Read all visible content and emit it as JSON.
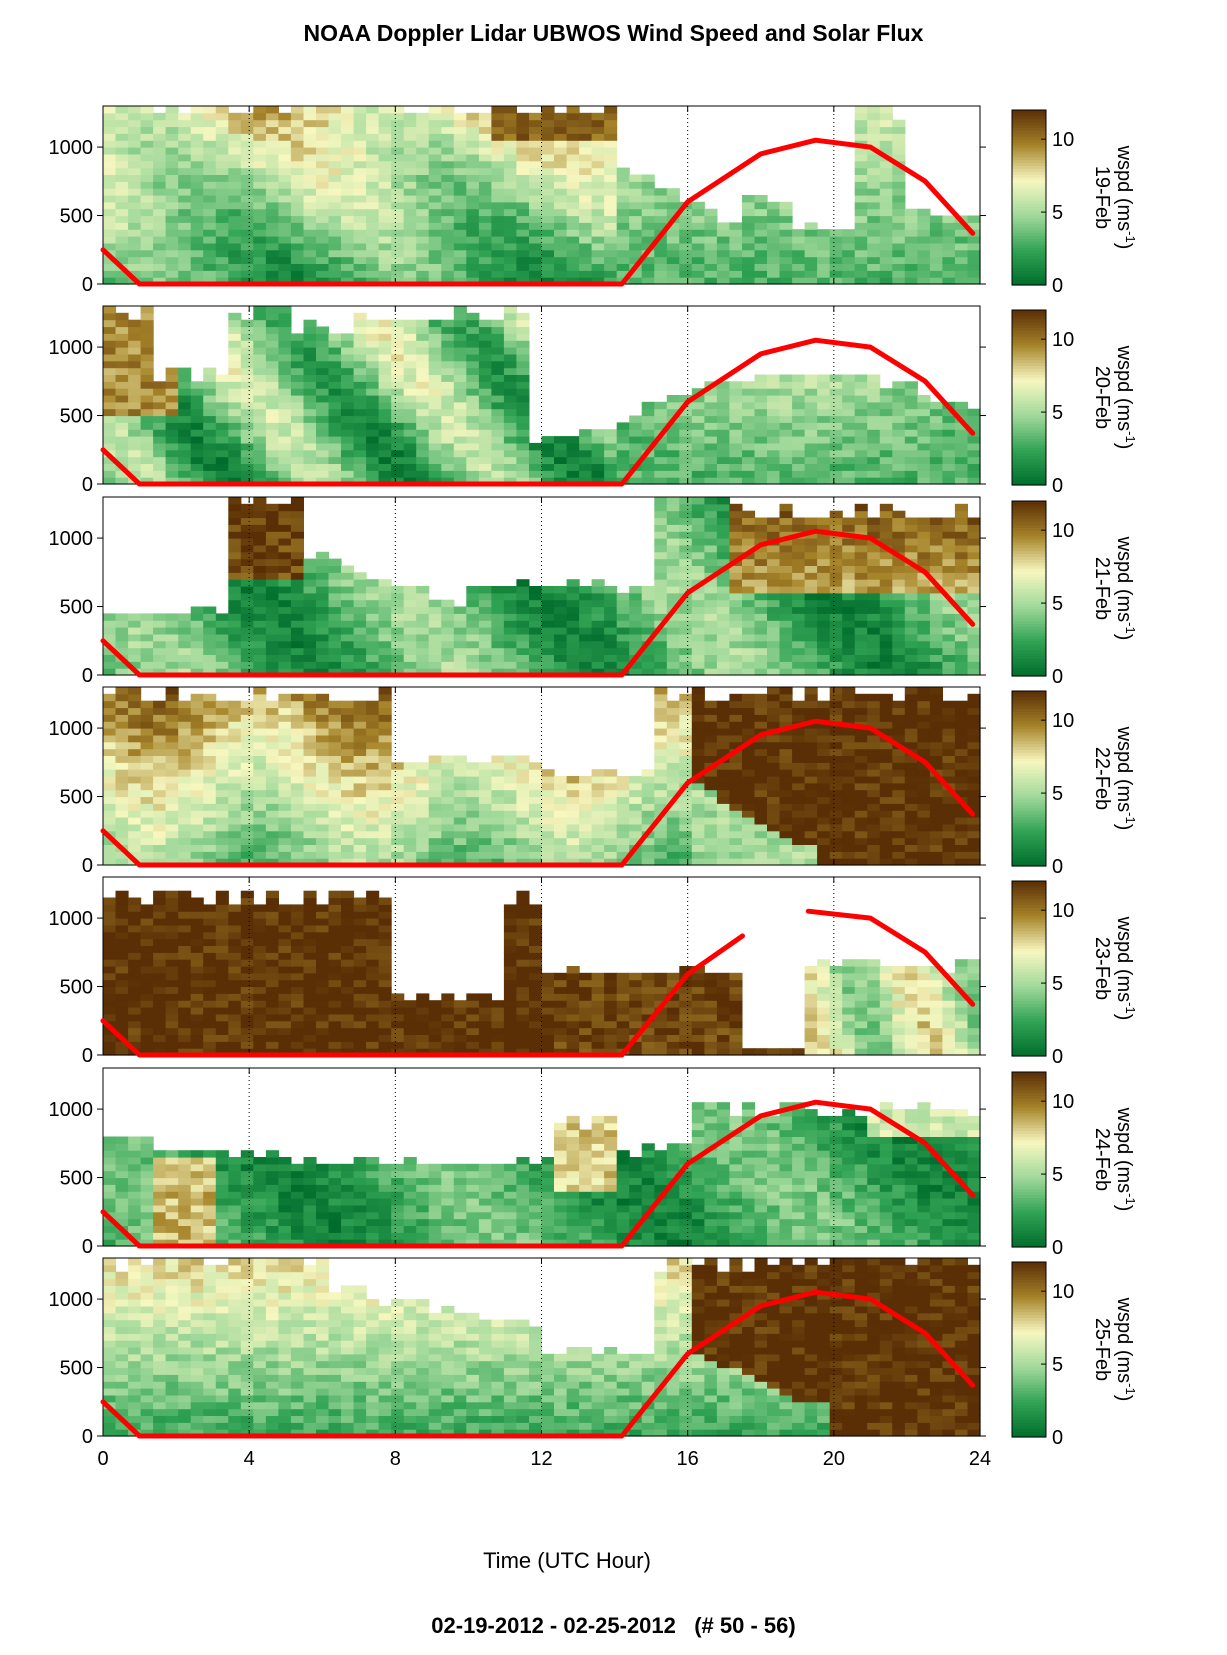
{
  "title": "NOAA Doppler Lidar UBWOS Wind Speed and Solar Flux",
  "footer": "02-19-2012 - 02-25-2012   (# 50 - 56)",
  "chart_data": {
    "type": "heatmap",
    "xlabel": "Time (UTC Hour)",
    "xlim": [
      0,
      24
    ],
    "x_ticks": [
      0,
      4,
      8,
      12,
      16,
      20,
      24
    ],
    "x_tick_labels": [
      "0",
      "4",
      "8",
      "12",
      "16",
      "20",
      "24"
    ],
    "vertical_gridlines": [
      4,
      8,
      12,
      16,
      20
    ],
    "ylim": [
      0,
      1300
    ],
    "y_ticks": [
      0,
      500,
      1000
    ],
    "y_tick_labels": [
      "0",
      "500",
      "1000"
    ],
    "colorbar": {
      "label": "wspd (ms",
      "unit_superscript": "-1",
      "label_close": ")",
      "range": [
        0,
        12
      ],
      "ticks": [
        0,
        5,
        10
      ],
      "tick_labels": [
        "0",
        "5",
        "10"
      ],
      "colormap": [
        "#006d2c",
        "#31a354",
        "#a1d99b",
        "#f7f7c0",
        "#a6842a",
        "#5a2f05"
      ]
    },
    "solar_flux_color": "#ff0000",
    "panels": [
      {
        "date": "19-Feb",
        "regime": "moderate",
        "solar_curve": [
          [
            0,
            250
          ],
          [
            1,
            0
          ],
          [
            14.2,
            0
          ],
          [
            16,
            600
          ],
          [
            18,
            950
          ],
          [
            19.5,
            1050
          ],
          [
            21,
            1000
          ],
          [
            22.5,
            750
          ],
          [
            23.8,
            370
          ]
        ]
      },
      {
        "date": "20-Feb",
        "regime": "mixed_light",
        "solar_curve": [
          [
            0,
            250
          ],
          [
            1,
            0
          ],
          [
            14.2,
            0
          ],
          [
            16,
            600
          ],
          [
            18,
            950
          ],
          [
            19.5,
            1050
          ],
          [
            21,
            1000
          ],
          [
            22.5,
            750
          ],
          [
            23.8,
            370
          ]
        ]
      },
      {
        "date": "21-Feb",
        "regime": "light_then_strong",
        "solar_curve": [
          [
            0,
            250
          ],
          [
            1,
            0
          ],
          [
            14.2,
            0
          ],
          [
            16,
            600
          ],
          [
            18,
            950
          ],
          [
            19.5,
            1050
          ],
          [
            21,
            1000
          ],
          [
            22.5,
            750
          ],
          [
            23.8,
            370
          ]
        ]
      },
      {
        "date": "22-Feb",
        "regime": "strong_afternoon",
        "solar_curve": [
          [
            0,
            250
          ],
          [
            1,
            0
          ],
          [
            14.2,
            0
          ],
          [
            16,
            600
          ],
          [
            18,
            950
          ],
          [
            19.5,
            1050
          ],
          [
            21,
            1000
          ],
          [
            22.5,
            750
          ],
          [
            23.8,
            370
          ]
        ]
      },
      {
        "date": "23-Feb",
        "regime": "strong_morning",
        "solar_curve": [
          [
            0,
            250
          ],
          [
            1,
            0
          ],
          [
            14.2,
            0
          ],
          [
            16,
            590
          ],
          [
            17.5,
            870
          ],
          [
            19.3,
            1050
          ],
          [
            21,
            1000
          ],
          [
            22.5,
            750
          ],
          [
            23.8,
            370
          ]
        ]
      },
      {
        "date": "24-Feb",
        "regime": "light",
        "solar_curve": [
          [
            0,
            250
          ],
          [
            1,
            0
          ],
          [
            14.2,
            0
          ],
          [
            16,
            600
          ],
          [
            18,
            950
          ],
          [
            19.5,
            1050
          ],
          [
            21,
            1000
          ],
          [
            22.5,
            750
          ],
          [
            23.8,
            370
          ]
        ]
      },
      {
        "date": "25-Feb",
        "regime": "light_then_strong_late",
        "solar_curve": [
          [
            0,
            250
          ],
          [
            1,
            0
          ],
          [
            14.2,
            0
          ],
          [
            16,
            600
          ],
          [
            18,
            950
          ],
          [
            19.5,
            1050
          ],
          [
            21,
            1000
          ],
          [
            22.5,
            750
          ],
          [
            23.8,
            370
          ]
        ]
      }
    ]
  }
}
